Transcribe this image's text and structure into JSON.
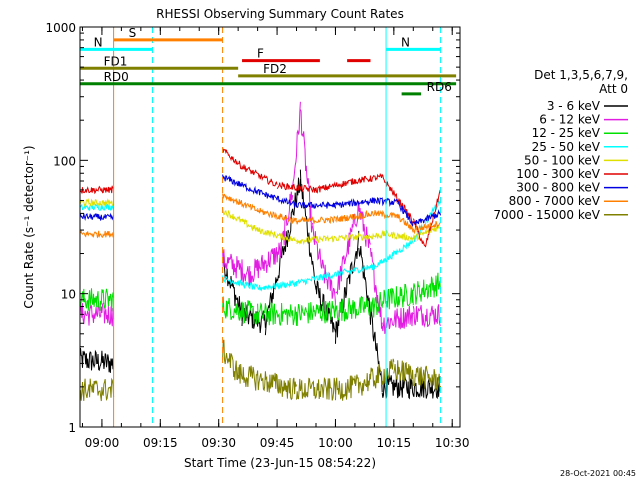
{
  "chart_data": {
    "type": "line",
    "title": "RHESSI Observing Summary Count Rates",
    "xlabel": "Start Time (23-Jun-15 08:54:22)",
    "ylabel": "Count Rate (s⁻¹ detector⁻¹)",
    "y_scale": "log",
    "ylim": [
      1,
      1000
    ],
    "xlim": [
      "08:54:22",
      "10:32:00"
    ],
    "x_ticks": [
      "09:00",
      "09:15",
      "09:30",
      "09:45",
      "10:00",
      "10:15",
      "10:30"
    ],
    "y_ticks": [
      "1",
      "10",
      "100",
      "1000"
    ],
    "timestamp": "28-Oct-2021 00:45",
    "legend": {
      "position": "right",
      "header_line1": "Det 1,3,5,6,7,9,",
      "header_line2": "Att 0"
    },
    "series": [
      {
        "name": "3 - 6 keV",
        "color": "#000000",
        "points": [
          [
            "08:54",
            3.2
          ],
          [
            "09:03",
            3.0
          ],
          [
            "09:31",
            18
          ],
          [
            "09:36",
            7
          ],
          [
            "09:42",
            6
          ],
          [
            "09:48",
            30
          ],
          [
            "09:51",
            70
          ],
          [
            "09:55",
            11
          ],
          [
            "10:00",
            5
          ],
          [
            "10:06",
            25
          ],
          [
            "10:12",
            2
          ],
          [
            "10:14",
            2
          ],
          [
            "10:27",
            2
          ]
        ]
      },
      {
        "name": "6 - 12 keV",
        "color": "#e21de2",
        "points": [
          [
            "08:54",
            7
          ],
          [
            "09:03",
            7
          ],
          [
            "09:31",
            18
          ],
          [
            "09:38",
            14
          ],
          [
            "09:46",
            21
          ],
          [
            "09:49",
            60
          ],
          [
            "09:51",
            240
          ],
          [
            "09:54",
            30
          ],
          [
            "09:57",
            14
          ],
          [
            "10:00",
            10
          ],
          [
            "10:06",
            45
          ],
          [
            "10:09",
            20
          ],
          [
            "10:12",
            6
          ],
          [
            "10:20",
            7
          ],
          [
            "10:27",
            7
          ]
        ]
      },
      {
        "name": "12 - 25 keV",
        "color": "#00e000",
        "points": [
          [
            "08:54",
            9
          ],
          [
            "09:03",
            9
          ],
          [
            "09:31",
            8
          ],
          [
            "09:40",
            7
          ],
          [
            "09:50",
            7
          ],
          [
            "10:00",
            7.5
          ],
          [
            "10:10",
            8
          ],
          [
            "10:13",
            9
          ],
          [
            "10:20",
            10
          ],
          [
            "10:27",
            12
          ]
        ]
      },
      {
        "name": "25 - 50 keV",
        "color": "#00ffff",
        "points": [
          [
            "08:54",
            44
          ],
          [
            "09:03",
            45
          ],
          [
            "09:31",
            13
          ],
          [
            "09:40",
            11
          ],
          [
            "09:50",
            12
          ],
          [
            "10:00",
            14
          ],
          [
            "10:10",
            16
          ],
          [
            "10:13",
            18
          ],
          [
            "10:20",
            25
          ],
          [
            "10:27",
            50
          ]
        ]
      },
      {
        "name": "50 - 100 keV",
        "color": "#e0e000",
        "points": [
          [
            "08:54",
            48
          ],
          [
            "09:03",
            48
          ],
          [
            "09:31",
            42
          ],
          [
            "09:40",
            30
          ],
          [
            "09:50",
            25
          ],
          [
            "10:00",
            26
          ],
          [
            "10:10",
            27
          ],
          [
            "10:13",
            28
          ],
          [
            "10:20",
            26
          ],
          [
            "10:27",
            32
          ]
        ]
      },
      {
        "name": "100 - 300 keV",
        "color": "#e00000",
        "points": [
          [
            "08:54",
            60
          ],
          [
            "09:03",
            60
          ],
          [
            "09:31",
            120
          ],
          [
            "09:36",
            90
          ],
          [
            "09:45",
            65
          ],
          [
            "09:55",
            60
          ],
          [
            "10:05",
            70
          ],
          [
            "10:12",
            75
          ],
          [
            "10:20",
            35
          ],
          [
            "10:23",
            22
          ],
          [
            "10:27",
            60
          ]
        ]
      },
      {
        "name": "300 - 800 keV",
        "color": "#0000e0",
        "points": [
          [
            "08:54",
            38
          ],
          [
            "09:03",
            37
          ],
          [
            "09:31",
            75
          ],
          [
            "09:40",
            58
          ],
          [
            "09:50",
            46
          ],
          [
            "10:00",
            46
          ],
          [
            "10:10",
            50
          ],
          [
            "10:16",
            48
          ],
          [
            "10:20",
            33
          ],
          [
            "10:27",
            40
          ]
        ]
      },
      {
        "name": "800 - 7000 keV",
        "color": "#ff8000",
        "points": [
          [
            "08:54",
            28
          ],
          [
            "09:03",
            28
          ],
          [
            "09:31",
            55
          ],
          [
            "09:40",
            42
          ],
          [
            "09:50",
            35
          ],
          [
            "10:00",
            36
          ],
          [
            "10:10",
            40
          ],
          [
            "10:16",
            38
          ],
          [
            "10:20",
            30
          ],
          [
            "10:27",
            34
          ]
        ]
      },
      {
        "name": "7000 - 15000 keV",
        "color": "#808000",
        "points": [
          [
            "08:54",
            1.9
          ],
          [
            "09:03",
            1.9
          ],
          [
            "09:31",
            3.8
          ],
          [
            "09:35",
            2.5
          ],
          [
            "09:50",
            1.9
          ],
          [
            "10:00",
            1.9
          ],
          [
            "10:05",
            2.0
          ],
          [
            "10:15",
            2.7
          ],
          [
            "10:27",
            2.2
          ]
        ]
      }
    ],
    "vertical_markers": [
      {
        "time": "09:03",
        "color": "#ff8000",
        "style": "solid"
      },
      {
        "time": "09:13",
        "color": "#00ffff",
        "style": "dashed"
      },
      {
        "time": "09:31",
        "color": "#ff8000",
        "style": "dashed"
      },
      {
        "time": "10:13",
        "color": "#00ffff",
        "style": "solid"
      },
      {
        "time": "10:27",
        "color": "#00ffff",
        "style": "dashed"
      }
    ],
    "flag_bars": [
      {
        "label": "S",
        "color": "#ff8000",
        "start": "09:03",
        "end": "09:31",
        "y": 800
      },
      {
        "label": "N",
        "color": "#00ffff",
        "start": "08:54",
        "end": "09:13",
        "y": 680
      },
      {
        "label": "N",
        "color": "#00ffff",
        "start": "10:13",
        "end": "10:27",
        "y": 680
      },
      {
        "label": "F",
        "color": "#e00000",
        "start": "09:36",
        "end": "09:56",
        "y": 560
      },
      {
        "label": "",
        "color": "#e00000",
        "start": "10:03",
        "end": "10:09",
        "y": 560
      },
      {
        "label": "FD1",
        "color": "#808000",
        "start": "08:54",
        "end": "09:35",
        "y": 490
      },
      {
        "label": "FD2",
        "color": "#808000",
        "start": "09:35",
        "end": "10:31",
        "y": 430
      },
      {
        "label": "RD0",
        "color": "#008000",
        "start": "08:54",
        "end": "10:31",
        "y": 375
      },
      {
        "label": "RD6",
        "color": "#008000",
        "start": "10:17",
        "end": "10:22",
        "y": 315
      }
    ]
  }
}
